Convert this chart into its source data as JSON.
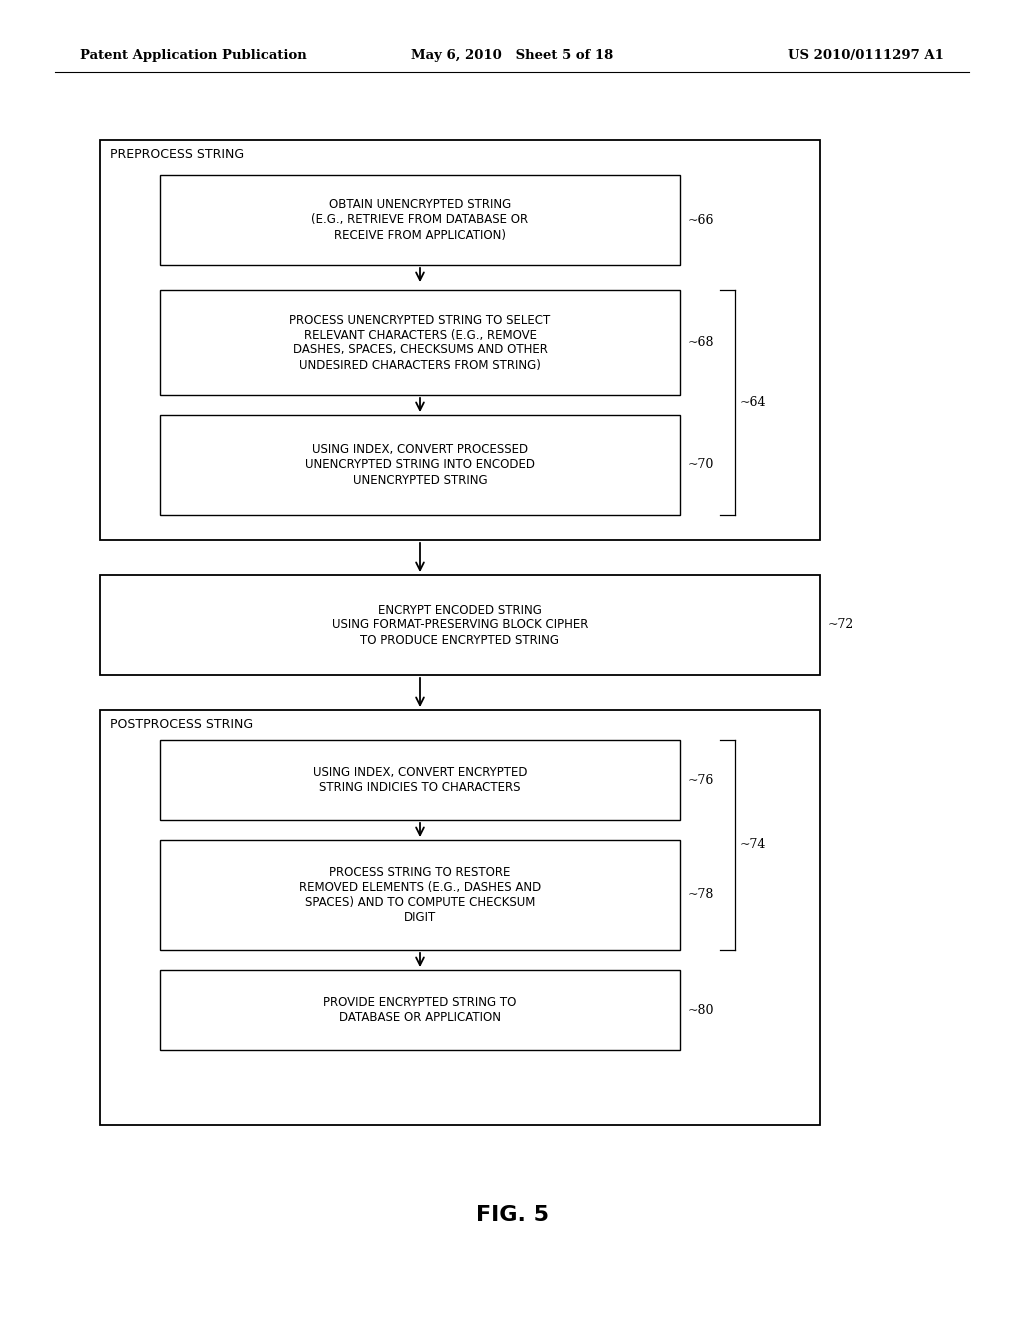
{
  "background_color": "#ffffff",
  "header_left": "Patent Application Publication",
  "header_center": "May 6, 2010   Sheet 5 of 18",
  "header_right": "US 2010/0111297 A1",
  "figure_label": "FIG. 5"
}
